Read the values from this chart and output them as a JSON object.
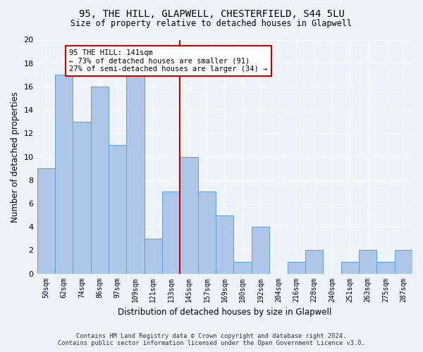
{
  "title": "95, THE HILL, GLAPWELL, CHESTERFIELD, S44 5LU",
  "subtitle": "Size of property relative to detached houses in Glapwell",
  "xlabel": "Distribution of detached houses by size in Glapwell",
  "ylabel": "Number of detached properties",
  "bar_labels": [
    "50sqm",
    "62sqm",
    "74sqm",
    "86sqm",
    "97sqm",
    "109sqm",
    "121sqm",
    "133sqm",
    "145sqm",
    "157sqm",
    "169sqm",
    "180sqm",
    "192sqm",
    "204sqm",
    "216sqm",
    "228sqm",
    "240sqm",
    "251sqm",
    "263sqm",
    "275sqm",
    "287sqm"
  ],
  "bar_heights": [
    9,
    17,
    13,
    16,
    11,
    17,
    3,
    7,
    10,
    7,
    5,
    1,
    4,
    0,
    1,
    2,
    0,
    1,
    2,
    1,
    2
  ],
  "bar_color": "#aec6e8",
  "bar_edge_color": "#5a9fd4",
  "vline_color": "#cc0000",
  "annotation_text": "95 THE HILL: 141sqm\n← 73% of detached houses are smaller (91)\n27% of semi-detached houses are larger (34) →",
  "annotation_box_color": "white",
  "annotation_box_edge_color": "#cc0000",
  "ylim": [
    0,
    20
  ],
  "yticks": [
    0,
    2,
    4,
    6,
    8,
    10,
    12,
    14,
    16,
    18,
    20
  ],
  "background_color": "#eef2f9",
  "grid_color": "white",
  "footer_line1": "Contains HM Land Registry data © Crown copyright and database right 2024.",
  "footer_line2": "Contains public sector information licensed under the Open Government Licence v3.0."
}
